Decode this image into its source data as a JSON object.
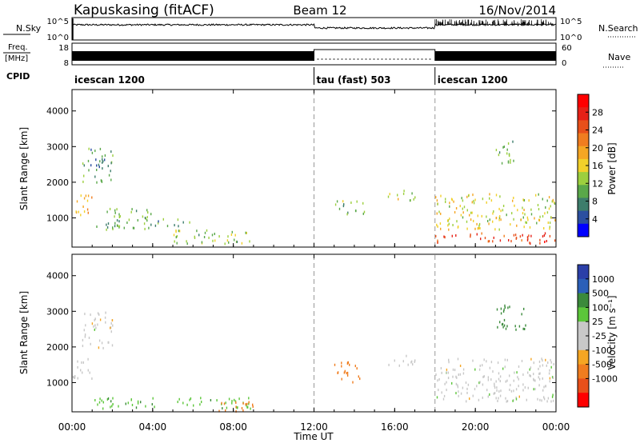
{
  "header": {
    "station": "Kapuskasing (fitACF)",
    "beam": "Beam 12",
    "date": "16/Nov/2014"
  },
  "strips": {
    "nsky_label": "N.Sky",
    "nsky_ticks": [
      "10^5",
      "10^0"
    ],
    "nsearch_label": "N.Search",
    "nsearch_ticks": [
      "10^5",
      "10^0"
    ],
    "freq_label_1": "Freq.",
    "freq_label_2": "[MHz]",
    "freq_ticks": [
      "18",
      "8"
    ],
    "nave_label": "Nave",
    "nave_ticks": [
      "60",
      "0"
    ],
    "cpid_label": "CPID"
  },
  "cpid_segments": [
    {
      "label": "icescan 1200",
      "start_hour": 0,
      "end_hour": 12
    },
    {
      "label": "tau (fast) 503",
      "start_hour": 12,
      "end_hour": 18
    },
    {
      "label": "icescan 1200",
      "start_hour": 18,
      "end_hour": 24
    }
  ],
  "x_axis": {
    "label": "Time UT",
    "tick_labels": [
      "00:00",
      "04:00",
      "08:00",
      "12:00",
      "16:00",
      "20:00",
      "00:00"
    ],
    "range_hours": [
      0,
      24
    ]
  },
  "panels": {
    "power": {
      "ylabel": "Slant Range [km]",
      "yticks": [
        "1000",
        "2000",
        "3000",
        "4000"
      ],
      "colorbar_label": "Power [dB]",
      "colorbar_ticks": [
        "4",
        "8",
        "12",
        "16",
        "20",
        "24",
        "28"
      ],
      "colors": [
        "#0000ff",
        "#2b4fa0",
        "#3d7d6b",
        "#5aa84a",
        "#9ccf3e",
        "#f2d02a",
        "#f5a623",
        "#f07d1f",
        "#e8501a",
        "#e62117",
        "#ff0000"
      ]
    },
    "velocity": {
      "ylabel": "Slant Range [km]",
      "yticks": [
        "1000",
        "2000",
        "3000",
        "4000"
      ],
      "colorbar_label": "Velocity [m s⁻¹]",
      "colorbar_ticks": [
        "1000",
        "500",
        "100",
        "25",
        "-25",
        "-100",
        "-500",
        "-1000"
      ],
      "colors": [
        "#2b3fa8",
        "#2b5fb8",
        "#3b8a3b",
        "#5cc63a",
        "#c8c8c8",
        "#c8c8c8",
        "#f5a623",
        "#f07d1f",
        "#e8501a",
        "#ff0000"
      ]
    }
  },
  "chart_data": {
    "type": "heatmap",
    "title": "Kapuskasing (fitACF)",
    "xlabel": "Time UT",
    "ylabel": "Slant Range [km]",
    "xlim": [
      0,
      24
    ],
    "ylim": [
      180,
      4600
    ],
    "panels": [
      {
        "name": "Power",
        "colorbar_label": "Power [dB]",
        "colorbar_range": [
          0,
          30
        ],
        "echo_regions": [
          {
            "t_start": 0.0,
            "t_end": 1.0,
            "range_start": 1100,
            "range_end": 1700,
            "value": 18
          },
          {
            "t_start": 0.5,
            "t_end": 2.0,
            "range_start": 2000,
            "range_end": 3000,
            "value": 8
          },
          {
            "t_start": 1.0,
            "t_end": 4.0,
            "range_start": 700,
            "range_end": 1300,
            "value": 10
          },
          {
            "t_start": 4.0,
            "t_end": 6.0,
            "range_start": 800,
            "range_end": 1000,
            "value": 9
          },
          {
            "t_start": 5.0,
            "t_end": 9.0,
            "range_start": 300,
            "range_end": 700,
            "value": 12
          },
          {
            "t_start": 13.0,
            "t_end": 14.5,
            "range_start": 1100,
            "range_end": 1500,
            "value": 10
          },
          {
            "t_start": 15.5,
            "t_end": 17.0,
            "range_start": 1500,
            "range_end": 1800,
            "value": 14
          },
          {
            "t_start": 18.0,
            "t_end": 24.0,
            "range_start": 300,
            "range_end": 600,
            "value": 24
          },
          {
            "t_start": 18.0,
            "t_end": 24.0,
            "range_start": 700,
            "range_end": 1700,
            "value": 14
          },
          {
            "t_start": 21.0,
            "t_end": 22.0,
            "range_start": 2500,
            "range_end": 3200,
            "value": 10
          }
        ]
      },
      {
        "name": "Velocity",
        "colorbar_label": "Velocity [m s⁻¹]",
        "colorbar_ticks": [
          1000,
          500,
          100,
          25,
          -25,
          -100,
          -500,
          -1000
        ],
        "echo_regions": [
          {
            "t_start": 0.0,
            "t_end": 1.0,
            "range_start": 1100,
            "range_end": 1700,
            "value": 0
          },
          {
            "t_start": 0.5,
            "t_end": 2.0,
            "range_start": 2000,
            "range_end": 3000,
            "value": 0
          },
          {
            "t_start": 1.0,
            "t_end": 9.0,
            "range_start": 300,
            "range_end": 600,
            "value": 80
          },
          {
            "t_start": 7.0,
            "t_end": 9.0,
            "range_start": 200,
            "range_end": 500,
            "value": -150
          },
          {
            "t_start": 13.0,
            "t_end": 14.3,
            "range_start": 1000,
            "range_end": 1600,
            "value": -200
          },
          {
            "t_start": 15.5,
            "t_end": 17.0,
            "range_start": 1500,
            "range_end": 1800,
            "value": 0
          },
          {
            "t_start": 18.0,
            "t_end": 24.0,
            "range_start": 500,
            "range_end": 1700,
            "value": 0
          },
          {
            "t_start": 21.0,
            "t_end": 22.5,
            "range_start": 2500,
            "range_end": 3200,
            "value": 150
          }
        ]
      }
    ]
  }
}
